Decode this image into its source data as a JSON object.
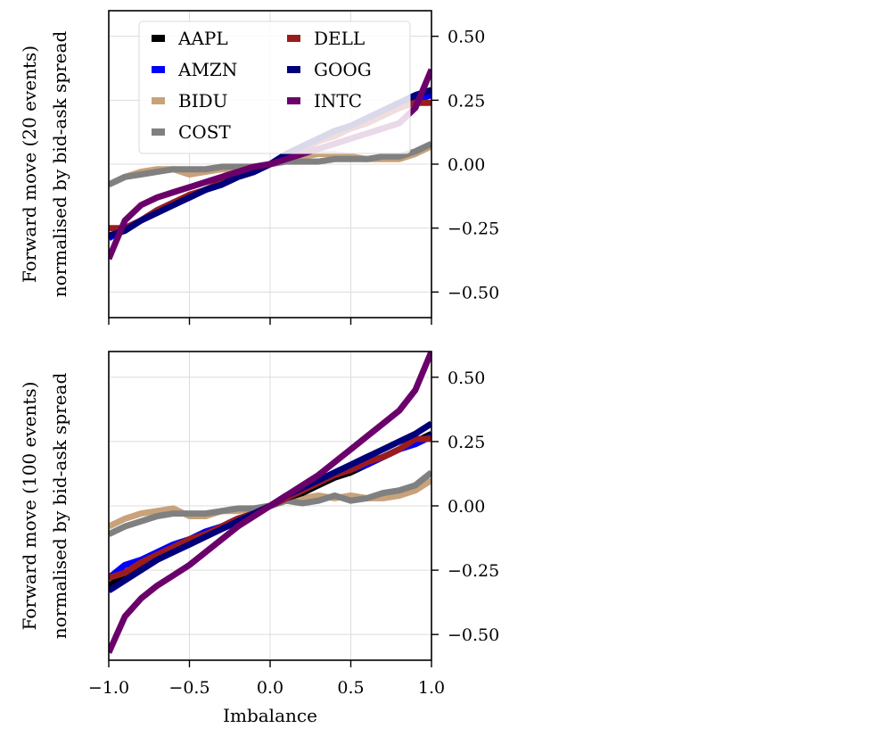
{
  "chart_data": [
    {
      "type": "line",
      "ylabel_lines": [
        "Forward move (20 events)",
        "normalised by bid-ask spread"
      ],
      "xlabel": "",
      "xlim": [
        -1.0,
        1.0
      ],
      "ylim": [
        -0.6,
        0.6
      ],
      "xticks": [
        -1.0,
        -0.5,
        0.0,
        0.5,
        1.0
      ],
      "xtick_labels": [
        "",
        "",
        "",
        "",
        ""
      ],
      "yticks": [
        0.5,
        0.25,
        0.0,
        -0.25,
        -0.5
      ],
      "ytick_labels": [
        "0.50",
        "0.25",
        "0.00",
        "−0.25",
        "−0.50"
      ],
      "y_axis_side": "right",
      "grid": true,
      "legend": {
        "placement": "upper-left",
        "columns": 2,
        "order": [
          "AAPL",
          "AMZN",
          "BIDU",
          "COST",
          "DELL",
          "GOOG",
          "INTC"
        ]
      },
      "x": [
        -1.0,
        -0.9,
        -0.8,
        -0.7,
        -0.6,
        -0.5,
        -0.4,
        -0.3,
        -0.2,
        -0.1,
        0.0,
        0.1,
        0.2,
        0.3,
        0.4,
        0.5,
        0.6,
        0.7,
        0.8,
        0.9,
        1.0
      ],
      "series": [
        {
          "name": "BIDU",
          "color": "#c8a27a",
          "values": [
            -0.08,
            -0.05,
            -0.03,
            -0.02,
            -0.02,
            -0.04,
            -0.03,
            -0.02,
            -0.02,
            -0.01,
            0.0,
            0.02,
            0.03,
            0.04,
            0.04,
            0.03,
            0.02,
            0.02,
            0.02,
            0.04,
            0.07
          ]
        },
        {
          "name": "COST",
          "color": "#808080",
          "values": [
            -0.08,
            -0.05,
            -0.04,
            -0.03,
            -0.02,
            -0.02,
            -0.02,
            -0.01,
            -0.01,
            -0.01,
            0.0,
            0.01,
            0.01,
            0.01,
            0.02,
            0.02,
            0.02,
            0.03,
            0.03,
            0.05,
            0.08
          ]
        },
        {
          "name": "AAPL",
          "color": "#000000",
          "values": [
            -0.28,
            -0.26,
            -0.22,
            -0.19,
            -0.16,
            -0.13,
            -0.1,
            -0.08,
            -0.05,
            -0.03,
            0.0,
            0.03,
            0.06,
            0.09,
            0.12,
            0.14,
            0.17,
            0.19,
            0.22,
            0.25,
            0.28
          ]
        },
        {
          "name": "AMZN",
          "color": "#0000ff",
          "values": [
            -0.29,
            -0.25,
            -0.22,
            -0.18,
            -0.15,
            -0.13,
            -0.1,
            -0.08,
            -0.05,
            -0.03,
            0.0,
            0.03,
            0.06,
            0.09,
            0.12,
            0.14,
            0.16,
            0.19,
            0.22,
            0.25,
            0.27
          ]
        },
        {
          "name": "DELL",
          "color": "#9b1c1c",
          "values": [
            -0.25,
            -0.25,
            -0.22,
            -0.18,
            -0.15,
            -0.12,
            -0.1,
            -0.07,
            -0.05,
            -0.03,
            0.0,
            0.03,
            0.06,
            0.09,
            0.11,
            0.14,
            0.16,
            0.19,
            0.22,
            0.24,
            0.24
          ]
        },
        {
          "name": "GOOG",
          "color": "#00007a",
          "values": [
            -0.28,
            -0.26,
            -0.22,
            -0.19,
            -0.16,
            -0.13,
            -0.1,
            -0.08,
            -0.05,
            -0.03,
            0.0,
            0.04,
            0.07,
            0.1,
            0.13,
            0.15,
            0.18,
            0.21,
            0.24,
            0.27,
            0.29
          ]
        },
        {
          "name": "INTC",
          "color": "#6b006b",
          "values": [
            -0.37,
            -0.22,
            -0.16,
            -0.13,
            -0.11,
            -0.09,
            -0.07,
            -0.05,
            -0.03,
            -0.01,
            0.0,
            0.02,
            0.04,
            0.06,
            0.08,
            0.1,
            0.12,
            0.14,
            0.16,
            0.22,
            0.37
          ]
        }
      ]
    },
    {
      "type": "line",
      "ylabel_lines": [
        "Forward move (100 events)",
        "normalised by bid-ask spread"
      ],
      "xlabel": "Imbalance",
      "xlim": [
        -1.0,
        1.0
      ],
      "ylim": [
        -0.6,
        0.6
      ],
      "xticks": [
        -1.0,
        -0.5,
        0.0,
        0.5,
        1.0
      ],
      "xtick_labels": [
        "−1.0",
        "−0.5",
        "0.0",
        "0.5",
        "1.0"
      ],
      "yticks": [
        0.5,
        0.25,
        0.0,
        -0.25,
        -0.5
      ],
      "ytick_labels": [
        "0.50",
        "0.25",
        "0.00",
        "−0.25",
        "−0.50"
      ],
      "y_axis_side": "right",
      "grid": true,
      "x": [
        -1.0,
        -0.9,
        -0.8,
        -0.7,
        -0.6,
        -0.5,
        -0.4,
        -0.3,
        -0.2,
        -0.1,
        0.0,
        0.1,
        0.2,
        0.3,
        0.4,
        0.5,
        0.6,
        0.7,
        0.8,
        0.9,
        1.0
      ],
      "series": [
        {
          "name": "BIDU",
          "color": "#c8a27a",
          "values": [
            -0.08,
            -0.05,
            -0.03,
            -0.02,
            -0.01,
            -0.04,
            -0.04,
            -0.02,
            -0.02,
            -0.01,
            0.0,
            0.02,
            0.03,
            0.04,
            0.03,
            0.04,
            0.03,
            0.03,
            0.04,
            0.06,
            0.1
          ]
        },
        {
          "name": "COST",
          "color": "#808080",
          "values": [
            -0.11,
            -0.08,
            -0.06,
            -0.04,
            -0.03,
            -0.03,
            -0.03,
            -0.02,
            -0.01,
            -0.01,
            0.0,
            0.02,
            0.01,
            0.02,
            0.04,
            0.02,
            0.03,
            0.05,
            0.06,
            0.08,
            0.13
          ]
        },
        {
          "name": "AAPL",
          "color": "#000000",
          "values": [
            -0.31,
            -0.27,
            -0.23,
            -0.2,
            -0.17,
            -0.14,
            -0.11,
            -0.08,
            -0.05,
            -0.03,
            0.0,
            0.03,
            0.05,
            0.08,
            0.11,
            0.13,
            0.16,
            0.19,
            0.22,
            0.25,
            0.28
          ]
        },
        {
          "name": "AMZN",
          "color": "#0000ff",
          "values": [
            -0.28,
            -0.23,
            -0.21,
            -0.18,
            -0.15,
            -0.13,
            -0.1,
            -0.08,
            -0.05,
            -0.03,
            0.0,
            0.03,
            0.06,
            0.09,
            0.12,
            0.14,
            0.16,
            0.19,
            0.22,
            0.24,
            0.27
          ]
        },
        {
          "name": "DELL",
          "color": "#9b1c1c",
          "values": [
            -0.28,
            -0.26,
            -0.22,
            -0.19,
            -0.16,
            -0.13,
            -0.11,
            -0.08,
            -0.05,
            -0.03,
            0.0,
            0.03,
            0.06,
            0.09,
            0.12,
            0.14,
            0.17,
            0.19,
            0.22,
            0.26,
            0.26
          ]
        },
        {
          "name": "GOOG",
          "color": "#00007a",
          "values": [
            -0.33,
            -0.29,
            -0.25,
            -0.21,
            -0.18,
            -0.15,
            -0.12,
            -0.09,
            -0.06,
            -0.03,
            0.0,
            0.04,
            0.07,
            0.1,
            0.13,
            0.16,
            0.19,
            0.22,
            0.25,
            0.28,
            0.32
          ]
        },
        {
          "name": "INTC",
          "color": "#6b006b",
          "values": [
            -0.57,
            -0.43,
            -0.36,
            -0.31,
            -0.27,
            -0.23,
            -0.18,
            -0.13,
            -0.08,
            -0.04,
            0.0,
            0.04,
            0.08,
            0.12,
            0.17,
            0.22,
            0.27,
            0.32,
            0.37,
            0.45,
            0.6
          ]
        }
      ]
    }
  ]
}
